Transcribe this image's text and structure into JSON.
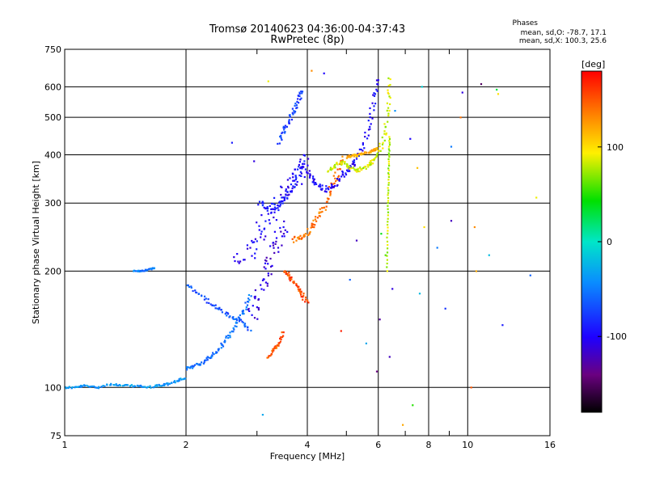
{
  "chart_data": {
    "type": "scatter",
    "title": "Tromsø 20140623 04:36:00-04:37:43",
    "subtitle": "RwPretec (8p)",
    "stats": {
      "heading": "Phases",
      "line_o": "mean, sd,O: -78.7, 17.1",
      "line_x": "mean, sd,X: 100.3, 25.6"
    },
    "xlabel": "Frequency [MHz]",
    "ylabel": "Stationary phase Virtual Height [km]",
    "xscale": "log",
    "yscale": "log",
    "xlim": [
      1,
      16
    ],
    "ylim": [
      75,
      750
    ],
    "x_ticks": [
      1,
      2,
      4,
      6,
      8,
      10,
      16
    ],
    "x_minor_ticks": [
      3,
      5,
      7,
      9
    ],
    "y_ticks": [
      75,
      100,
      200,
      300,
      400,
      500,
      600,
      750
    ],
    "grid": true,
    "colorbar": {
      "label": "[deg]",
      "min": -180,
      "max": 180,
      "ticks": [
        100,
        0,
        -100
      ]
    },
    "traces": [
      {
        "x": [
          1.0,
          1.06,
          1.12,
          1.2,
          1.3,
          1.4,
          1.5,
          1.6,
          1.7,
          1.8,
          1.9,
          2.0
        ],
        "y": [
          100,
          100,
          101,
          100,
          102,
          101,
          101,
          100,
          101,
          102,
          104,
          106
        ],
        "phase": -40,
        "spread": 2.5
      },
      {
        "x": [
          1.48,
          1.55,
          1.62,
          1.68
        ],
        "y": [
          200,
          200,
          202,
          204
        ],
        "phase": -50,
        "spread": 1.5
      },
      {
        "x": [
          2.0,
          2.1,
          2.2,
          2.3,
          2.4,
          2.5,
          2.6,
          2.7,
          2.8,
          2.9
        ],
        "y": [
          112,
          114,
          116,
          120,
          125,
          132,
          140,
          150,
          160,
          175
        ],
        "phase": -55,
        "spread": 4
      },
      {
        "x": [
          2.0,
          2.15,
          2.3,
          2.45,
          2.6,
          2.75,
          2.9
        ],
        "y": [
          185,
          175,
          165,
          158,
          152,
          148,
          140
        ],
        "phase": -65,
        "spread": 4
      },
      {
        "x": [
          2.7,
          2.85,
          3.0,
          3.15,
          3.3,
          3.45,
          3.6,
          3.75,
          3.9,
          4.0
        ],
        "y": [
          210,
          225,
          245,
          265,
          290,
          310,
          330,
          350,
          370,
          395
        ],
        "phase": -100,
        "spread": 18
      },
      {
        "x": [
          2.9,
          3.0,
          3.1,
          3.2,
          3.3,
          3.4,
          3.5
        ],
        "y": [
          150,
          165,
          185,
          205,
          225,
          245,
          265
        ],
        "phase": -110,
        "spread": 14
      },
      {
        "x": [
          3.05,
          3.2,
          3.35,
          3.5,
          3.65,
          3.8,
          3.95
        ],
        "y": [
          300,
          295,
          292,
          310,
          330,
          360,
          400
        ],
        "phase": -90,
        "spread": 8
      },
      {
        "x": [
          3.4,
          3.5,
          3.6,
          3.7,
          3.8,
          3.9
        ],
        "y": [
          430,
          460,
          490,
          520,
          560,
          590
        ],
        "phase": -75,
        "spread": 5
      },
      {
        "x": [
          3.7,
          3.85,
          4.0,
          4.15,
          4.3,
          4.45,
          4.6,
          4.75,
          4.9
        ],
        "y": [
          240,
          245,
          250,
          265,
          280,
          300,
          330,
          360,
          395
        ],
        "phase": 140,
        "spread": 6
      },
      {
        "x": [
          3.5,
          3.6,
          3.7,
          3.8,
          3.9,
          4.0
        ],
        "y": [
          200,
          195,
          188,
          180,
          172,
          165
        ],
        "phase": 155,
        "spread": 5
      },
      {
        "x": [
          3.2,
          3.3,
          3.4,
          3.5
        ],
        "y": [
          120,
          125,
          130,
          140
        ],
        "phase": 150,
        "spread": 3
      },
      {
        "x": [
          4.0,
          4.15,
          4.3,
          4.5,
          4.7,
          4.9,
          5.1,
          5.3,
          5.5,
          5.7,
          5.85,
          5.95
        ],
        "y": [
          360,
          345,
          330,
          325,
          335,
          355,
          370,
          390,
          420,
          480,
          560,
          640
        ],
        "phase": -100,
        "spread": 6
      },
      {
        "x": [
          4.5,
          4.7,
          4.9,
          5.1,
          5.3,
          5.5,
          5.7,
          5.9,
          6.1,
          6.25,
          6.35,
          6.42
        ],
        "y": [
          365,
          375,
          385,
          372,
          365,
          370,
          378,
          390,
          420,
          470,
          550,
          640
        ],
        "phase": 85,
        "spread": 5
      },
      {
        "x": [
          5.0,
          5.2,
          5.4,
          5.6,
          5.8,
          6.0
        ],
        "y": [
          395,
          398,
          400,
          405,
          410,
          415
        ],
        "phase": 120,
        "spread": 3
      },
      {
        "x": [
          6.3,
          6.32,
          6.34,
          6.36,
          6.38,
          6.4
        ],
        "y": [
          200,
          250,
          300,
          350,
          400,
          450
        ],
        "phase": 80,
        "spread": 1
      }
    ],
    "scatter": [
      {
        "x": 5.95,
        "y": 110,
        "phase": -140
      },
      {
        "x": 6.05,
        "y": 150,
        "phase": -130
      },
      {
        "x": 6.4,
        "y": 120,
        "phase": -120
      },
      {
        "x": 6.5,
        "y": 180,
        "phase": -110
      },
      {
        "x": 6.1,
        "y": 250,
        "phase": 40
      },
      {
        "x": 6.25,
        "y": 220,
        "phase": 60
      },
      {
        "x": 7.3,
        "y": 90,
        "phase": 50
      },
      {
        "x": 7.6,
        "y": 175,
        "phase": -20
      },
      {
        "x": 7.8,
        "y": 260,
        "phase": 100
      },
      {
        "x": 8.4,
        "y": 230,
        "phase": -50
      },
      {
        "x": 9.1,
        "y": 270,
        "phase": -120
      },
      {
        "x": 9.1,
        "y": 420,
        "phase": -50
      },
      {
        "x": 9.6,
        "y": 500,
        "phase": 140
      },
      {
        "x": 9.7,
        "y": 580,
        "phase": -110
      },
      {
        "x": 10.2,
        "y": 100,
        "phase": 150
      },
      {
        "x": 10.5,
        "y": 200,
        "phase": 120
      },
      {
        "x": 10.8,
        "y": 610,
        "phase": -150
      },
      {
        "x": 11.8,
        "y": 590,
        "phase": 30
      },
      {
        "x": 11.9,
        "y": 575,
        "phase": 100
      },
      {
        "x": 12.2,
        "y": 145,
        "phase": -90
      },
      {
        "x": 14.3,
        "y": 195,
        "phase": -60
      },
      {
        "x": 14.8,
        "y": 310,
        "phase": 90
      },
      {
        "x": 7.5,
        "y": 370,
        "phase": 110
      },
      {
        "x": 7.2,
        "y": 440,
        "phase": -100
      },
      {
        "x": 8.8,
        "y": 160,
        "phase": -80
      },
      {
        "x": 10.4,
        "y": 260,
        "phase": 130
      },
      {
        "x": 11.3,
        "y": 220,
        "phase": -20
      },
      {
        "x": 4.4,
        "y": 650,
        "phase": -100
      },
      {
        "x": 4.1,
        "y": 660,
        "phase": 130
      },
      {
        "x": 3.2,
        "y": 620,
        "phase": 90
      },
      {
        "x": 3.1,
        "y": 85,
        "phase": -30
      },
      {
        "x": 2.95,
        "y": 385,
        "phase": -110
      },
      {
        "x": 2.6,
        "y": 430,
        "phase": -90
      },
      {
        "x": 5.1,
        "y": 190,
        "phase": -60
      },
      {
        "x": 5.6,
        "y": 130,
        "phase": -30
      },
      {
        "x": 4.85,
        "y": 140,
        "phase": 170
      },
      {
        "x": 7.7,
        "y": 600,
        "phase": -10
      },
      {
        "x": 6.6,
        "y": 520,
        "phase": -40
      },
      {
        "x": 5.3,
        "y": 240,
        "phase": -120
      },
      {
        "x": 6.9,
        "y": 80,
        "phase": 120
      }
    ]
  }
}
